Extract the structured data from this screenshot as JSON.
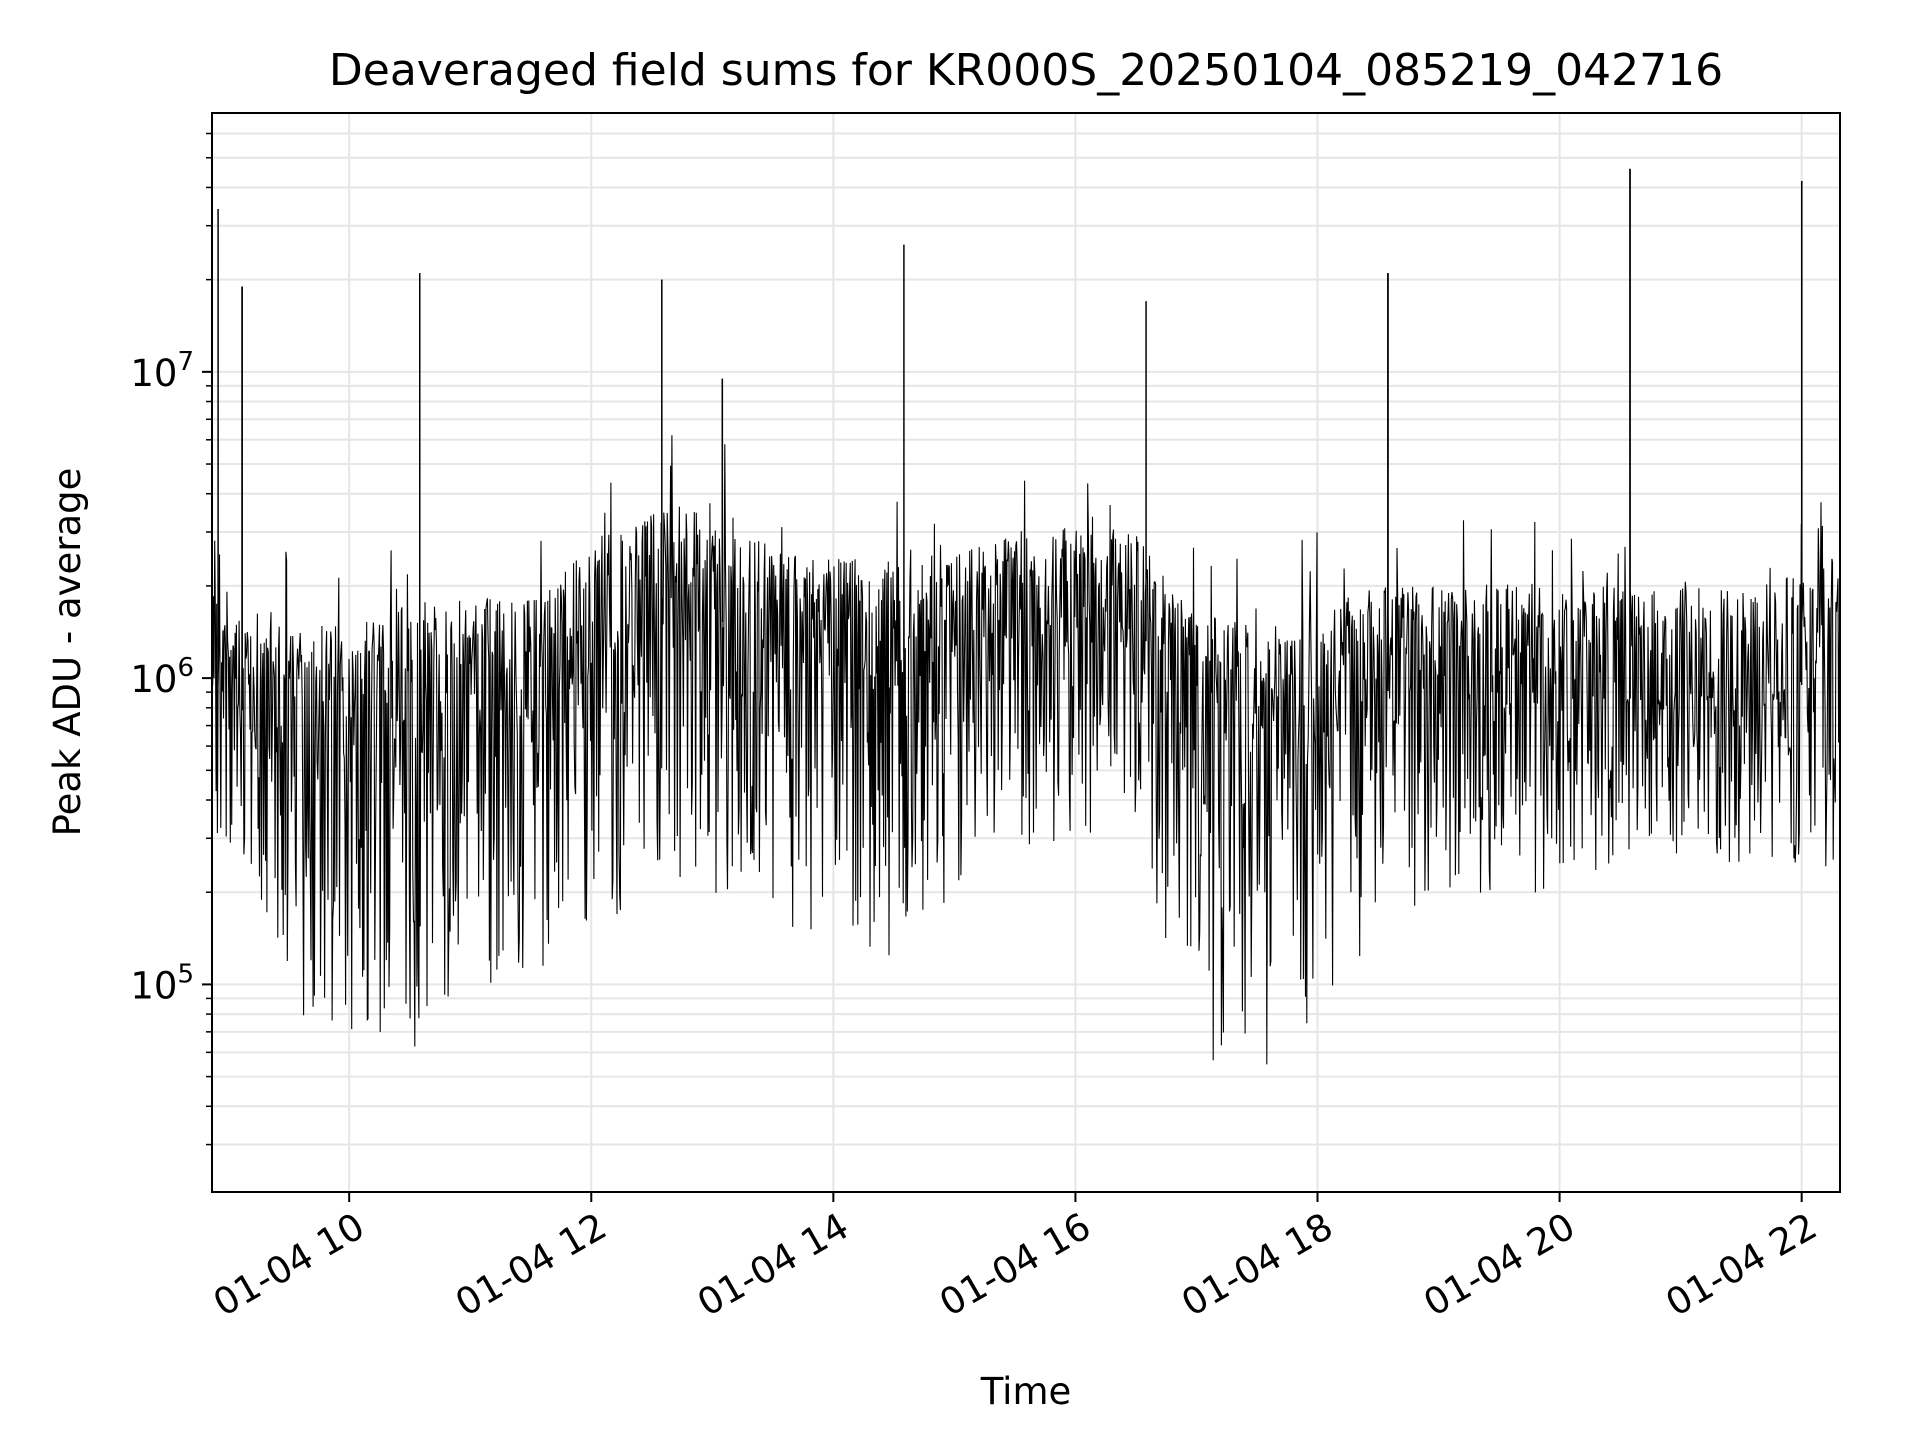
{
  "chart_data": {
    "type": "line",
    "title": "Deaveraged field sums for KR000S_20250104_085219_042716",
    "xlabel": "Time",
    "ylabel": "Peak ADU - average",
    "x_start": "2025-01-04 08:52",
    "x_end": "2025-01-04 22:19",
    "xlim": [
      "2025-01-04 08:52",
      "2025-01-04 22:19"
    ],
    "ylim": [
      21000,
      70000000
    ],
    "yscale": "log",
    "grid": true,
    "line_color": "#000000",
    "grid_color": "#e6e6e6",
    "x_ticks": [
      {
        "time": "2025-01-04 10:00",
        "label": "01-04 10"
      },
      {
        "time": "2025-01-04 12:00",
        "label": "01-04 12"
      },
      {
        "time": "2025-01-04 14:00",
        "label": "01-04 14"
      },
      {
        "time": "2025-01-04 16:00",
        "label": "01-04 16"
      },
      {
        "time": "2025-01-04 18:00",
        "label": "01-04 18"
      },
      {
        "time": "2025-01-04 20:00",
        "label": "01-04 20"
      },
      {
        "time": "2025-01-04 22:00",
        "label": "01-04 22"
      }
    ],
    "y_ticks": [
      {
        "value": 100000,
        "base": "10",
        "exp": "5"
      },
      {
        "value": 1000000,
        "base": "10",
        "exp": "6"
      },
      {
        "value": 10000000,
        "base": "10",
        "exp": "7"
      }
    ],
    "spikes": [
      {
        "time": "2025-01-04 08:55",
        "value": 34000000
      },
      {
        "time": "2025-01-04 09:07",
        "value": 19000000
      },
      {
        "time": "2025-01-04 10:35",
        "value": 21000000
      },
      {
        "time": "2025-01-04 12:35",
        "value": 20000000
      },
      {
        "time": "2025-01-04 13:05",
        "value": 9500000
      },
      {
        "time": "2025-01-04 14:35",
        "value": 26000000
      },
      {
        "time": "2025-01-04 16:35",
        "value": 17000000
      },
      {
        "time": "2025-01-04 18:35",
        "value": 21000000
      },
      {
        "time": "2025-01-04 20:35",
        "value": 46000000
      },
      {
        "time": "2025-01-04 22:00",
        "value": 42000000
      }
    ],
    "envelope": [
      {
        "time": "2025-01-04 08:52",
        "high": 2500000,
        "center": 1400000,
        "low": 300000
      },
      {
        "time": "2025-01-04 09:10",
        "high": 1400000,
        "center": 700000,
        "low": 250000
      },
      {
        "time": "2025-01-04 09:30",
        "high": 1500000,
        "center": 550000,
        "low": 80000
      },
      {
        "time": "2025-01-04 10:00",
        "high": 1500000,
        "center": 600000,
        "low": 70000
      },
      {
        "time": "2025-01-04 10:30",
        "high": 1800000,
        "center": 750000,
        "low": 60000
      },
      {
        "time": "2025-01-04 11:00",
        "high": 1800000,
        "center": 800000,
        "low": 90000
      },
      {
        "time": "2025-01-04 11:30",
        "high": 1900000,
        "center": 850000,
        "low": 100000
      },
      {
        "time": "2025-01-04 12:00",
        "high": 2800000,
        "center": 1200000,
        "low": 150000
      },
      {
        "time": "2025-01-04 12:30",
        "high": 3500000,
        "center": 1500000,
        "low": 200000
      },
      {
        "time": "2025-01-04 13:00",
        "high": 3800000,
        "center": 1600000,
        "low": 200000
      },
      {
        "time": "2025-01-04 13:30",
        "high": 2600000,
        "center": 1200000,
        "low": 150000
      },
      {
        "time": "2025-01-04 14:00",
        "high": 2500000,
        "center": 1100000,
        "low": 150000
      },
      {
        "time": "2025-01-04 14:30",
        "high": 2600000,
        "center": 1200000,
        "low": 120000
      },
      {
        "time": "2025-01-04 15:00",
        "high": 2500000,
        "center": 1300000,
        "low": 200000
      },
      {
        "time": "2025-01-04 15:30",
        "high": 3000000,
        "center": 1500000,
        "low": 250000
      },
      {
        "time": "2025-01-04 16:00",
        "high": 3300000,
        "center": 1600000,
        "low": 300000
      },
      {
        "time": "2025-01-04 16:30",
        "high": 3000000,
        "center": 1500000,
        "low": 350000
      },
      {
        "time": "2025-01-04 17:00",
        "high": 1600000,
        "center": 700000,
        "low": 50000
      },
      {
        "time": "2025-01-04 17:30",
        "high": 1500000,
        "center": 650000,
        "low": 45000
      },
      {
        "time": "2025-01-04 18:00",
        "high": 1700000,
        "center": 700000,
        "low": 60000
      },
      {
        "time": "2025-01-04 18:30",
        "high": 2000000,
        "center": 900000,
        "low": 150000
      },
      {
        "time": "2025-01-04 19:00",
        "high": 2000000,
        "center": 950000,
        "low": 200000
      },
      {
        "time": "2025-01-04 19:30",
        "high": 2100000,
        "center": 900000,
        "low": 180000
      },
      {
        "time": "2025-01-04 20:00",
        "high": 2000000,
        "center": 900000,
        "low": 200000
      },
      {
        "time": "2025-01-04 20:30",
        "high": 2000000,
        "center": 850000,
        "low": 250000
      },
      {
        "time": "2025-01-04 21:00",
        "high": 2000000,
        "center": 900000,
        "low": 250000
      },
      {
        "time": "2025-01-04 21:30",
        "high": 2000000,
        "center": 850000,
        "low": 250000
      },
      {
        "time": "2025-01-04 22:00",
        "high": 2200000,
        "center": 950000,
        "low": 250000
      },
      {
        "time": "2025-01-04 22:19",
        "high": 2500000,
        "center": 1200000,
        "low": 200000
      }
    ]
  }
}
